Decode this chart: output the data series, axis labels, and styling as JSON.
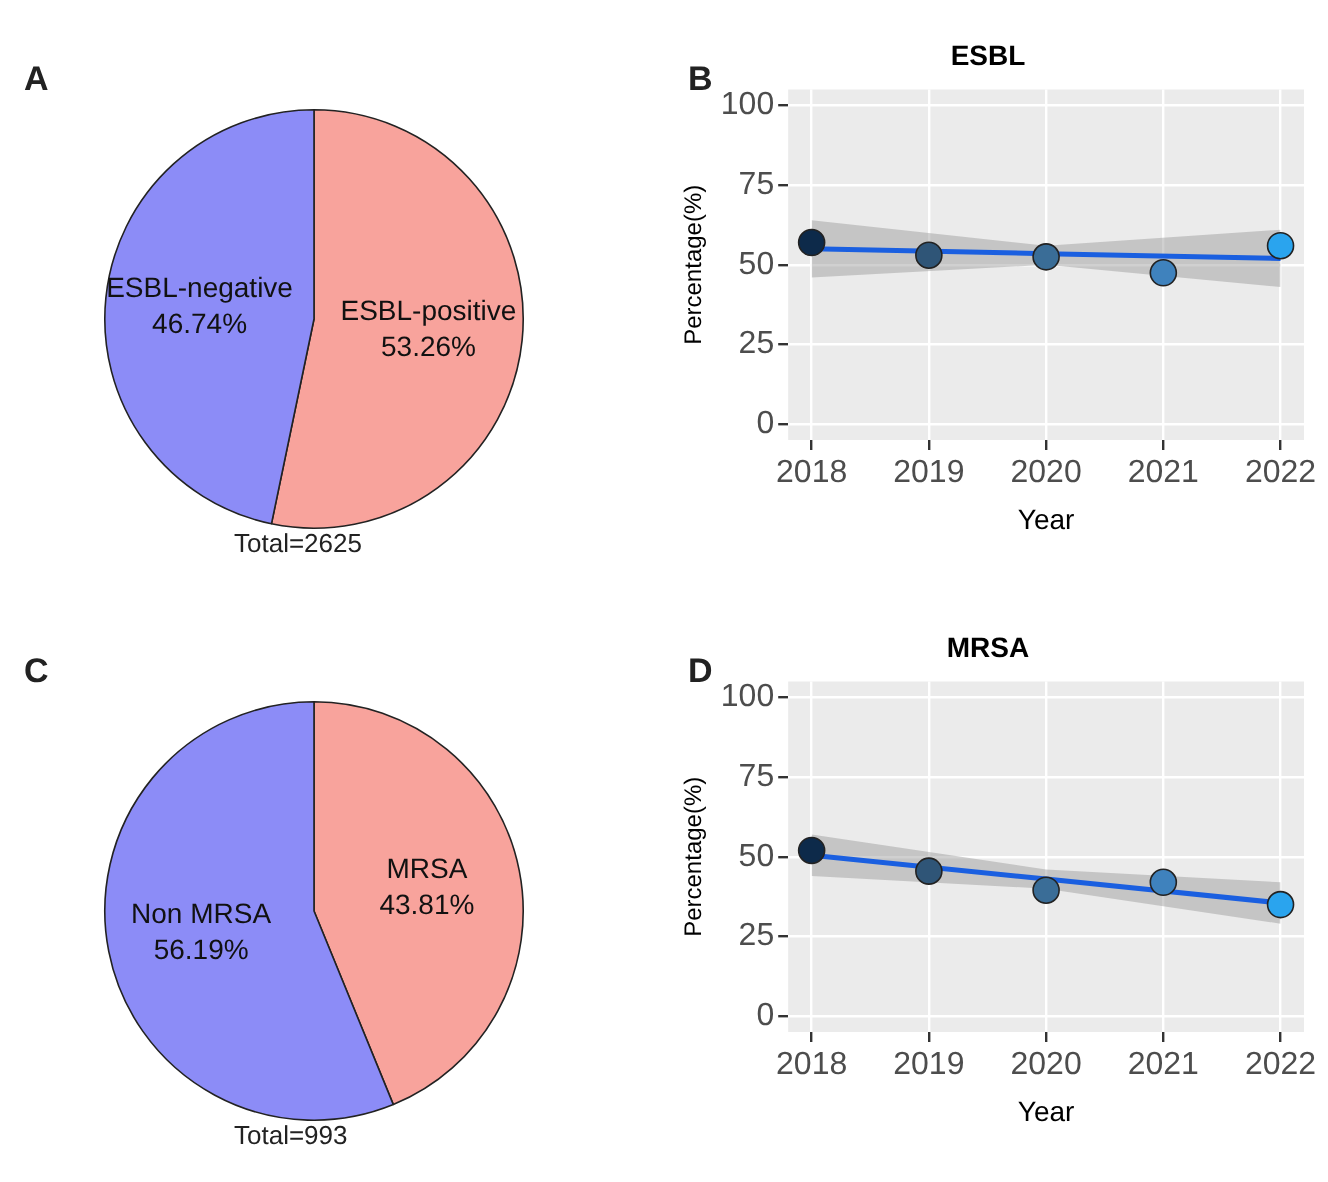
{
  "chart_data": [
    {
      "type": "pie",
      "annotations": [
        "A",
        "Total=2625"
      ],
      "categories": [
        "ESBL-positive",
        "ESBL-negative"
      ],
      "values": [
        53.26,
        46.74
      ],
      "value_labels": [
        "53.26%",
        "46.74%"
      ],
      "colors": [
        "#f8a39c",
        "#8c8cf7"
      ]
    },
    {
      "type": "scatter",
      "title": "ESBL",
      "annotations": [
        "B"
      ],
      "xlabel": "Year",
      "ylabel": "Percentage(%)",
      "xlim": [
        2017.8,
        2022.2
      ],
      "xticks": [
        2018,
        2019,
        2020,
        2021,
        2022
      ],
      "ylim": [
        -5,
        105
      ],
      "yticks": [
        0,
        25,
        50,
        75,
        100
      ],
      "grid": true,
      "marker": "circle",
      "series": [
        {
          "type": "line",
          "marker": "none",
          "color": "#1a5fe0",
          "x": [
            2018,
            2020,
            2022
          ],
          "values": [
            55,
            53.5,
            52
          ],
          "lower": [
            46,
            50,
            43
          ],
          "upper": [
            64,
            56,
            61
          ]
        },
        {
          "type": "scatter",
          "x": [
            2018,
            2019,
            2020,
            2021,
            2022
          ],
          "values": [
            57,
            53,
            52.5,
            47.5,
            56
          ],
          "colors": [
            "#0d2a4a",
            "#2f5577",
            "#3a6d97",
            "#3f82bd",
            "#2aa4ee"
          ]
        }
      ]
    },
    {
      "type": "pie",
      "annotations": [
        "C",
        "Total=993"
      ],
      "categories": [
        "MRSA",
        "Non MRSA"
      ],
      "values": [
        43.81,
        56.19
      ],
      "value_labels": [
        "43.81%",
        "56.19%"
      ],
      "colors": [
        "#f8a39c",
        "#8c8cf7"
      ]
    },
    {
      "type": "scatter",
      "title": "MRSA",
      "annotations": [
        "D"
      ],
      "xlabel": "Year",
      "ylabel": "Percentage(%)",
      "xlim": [
        2017.8,
        2022.2
      ],
      "xticks": [
        2018,
        2019,
        2020,
        2021,
        2022
      ],
      "ylim": [
        -5,
        105
      ],
      "yticks": [
        0,
        25,
        50,
        75,
        100
      ],
      "grid": true,
      "marker": "circle",
      "series": [
        {
          "type": "line",
          "marker": "none",
          "color": "#1a5fe0",
          "x": [
            2018,
            2020,
            2022
          ],
          "values": [
            50.5,
            43,
            35.5
          ],
          "lower": [
            44,
            40,
            29
          ],
          "upper": [
            57,
            46,
            42
          ]
        },
        {
          "type": "scatter",
          "x": [
            2018,
            2019,
            2020,
            2021,
            2022
          ],
          "values": [
            52,
            45.5,
            39.5,
            42,
            35
          ],
          "colors": [
            "#0d2a4a",
            "#2f5577",
            "#3a6d97",
            "#3f82bd",
            "#2aa4ee"
          ]
        }
      ]
    }
  ]
}
